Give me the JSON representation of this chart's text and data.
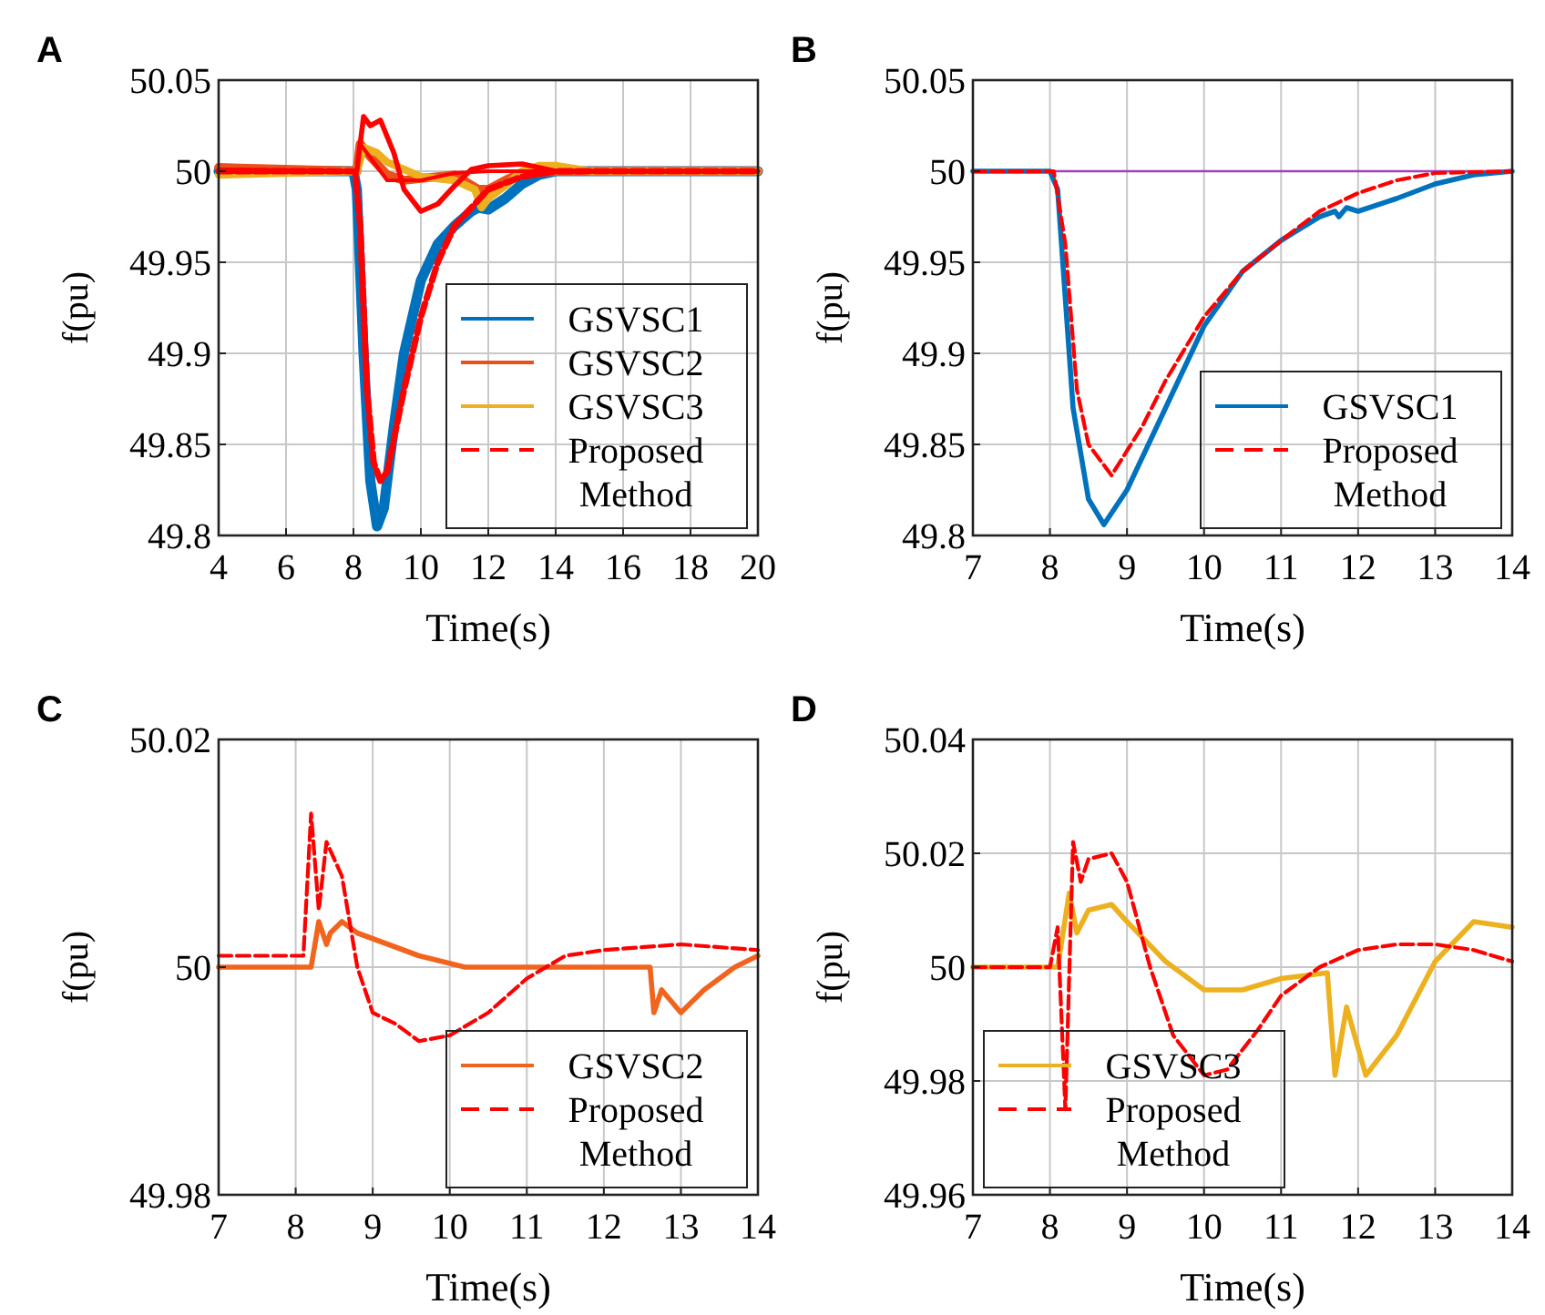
{
  "chart_data": [
    {
      "type": "line",
      "title": "A",
      "xlabel": "Time(s)",
      "ylabel": "f(pu)",
      "xlim": [
        4,
        20
      ],
      "xticks": [
        4,
        6,
        8,
        10,
        12,
        14,
        16,
        18,
        20
      ],
      "ylim": [
        49.8,
        50.05
      ],
      "yticks": [
        49.8,
        49.85,
        49.9,
        49.95,
        50,
        50.05
      ],
      "grid": true,
      "legend": "bottom right",
      "series": [
        {
          "name": "GSVSC1",
          "color": "#0072bd",
          "x": [
            4,
            8,
            8.1,
            8.3,
            8.5,
            8.7,
            8.9,
            9.2,
            9.5,
            10,
            10.5,
            11,
            11.5,
            11.7,
            12,
            12.5,
            13,
            13.5,
            14,
            20
          ],
          "values": [
            50,
            50,
            49.99,
            49.9,
            49.83,
            49.805,
            49.815,
            49.86,
            49.9,
            49.94,
            49.96,
            49.97,
            49.978,
            49.98,
            49.979,
            49.985,
            49.993,
            49.998,
            50,
            50
          ]
        },
        {
          "name": "GSVSC2",
          "color": "#e8501c",
          "x": [
            4,
            8.1,
            8.2,
            8.5,
            9,
            9.5,
            10,
            11,
            11.7,
            12,
            12.5,
            13,
            14,
            20
          ],
          "values": [
            50.002,
            50,
            50.015,
            50.008,
            49.998,
            49.995,
            49.996,
            49.998,
            49.99,
            49.99,
            49.995,
            49.999,
            50,
            50
          ]
        },
        {
          "name": "GSVSC3",
          "color": "#edb120",
          "x": [
            4,
            8.1,
            8.3,
            8.7,
            9,
            10,
            11,
            11.6,
            11.8,
            12,
            12.5,
            13,
            13.5,
            14,
            15,
            20
          ],
          "values": [
            49.998,
            50,
            50.013,
            50.01,
            50.005,
            49.997,
            49.995,
            49.99,
            49.98,
            49.985,
            49.992,
            50,
            50.003,
            50.003,
            50,
            50
          ]
        },
        {
          "name": "Proposed Method",
          "color": "#ff0000",
          "line_style": "dashed",
          "x": [
            4,
            8.05,
            8.2,
            8.4,
            8.6,
            8.8,
            9,
            9.5,
            10,
            10.5,
            11,
            11.5,
            12,
            13,
            14,
            20
          ],
          "values": [
            50,
            50,
            49.97,
            49.88,
            49.84,
            49.83,
            49.835,
            49.88,
            49.92,
            49.95,
            49.97,
            49.98,
            49.99,
            49.997,
            50,
            50
          ]
        },
        {
          "color": "#ff0000",
          "x": [
            4,
            8.1,
            8.3,
            8.5,
            8.8,
            9.2,
            9.5,
            10,
            10.5,
            11,
            11.5,
            12,
            13,
            14,
            20
          ],
          "values": [
            50,
            50,
            50.03,
            50.025,
            50.028,
            50.01,
            49.99,
            49.978,
            49.982,
            49.992,
            50.001,
            50.003,
            50.004,
            50,
            50
          ]
        },
        {
          "color": "#ff0000",
          "x": [
            4,
            8.1,
            8.2,
            8.6,
            9,
            10,
            11,
            12,
            13,
            20
          ],
          "values": [
            50.001,
            50,
            50.015,
            50.005,
            49.995,
            49.995,
            49.999,
            50,
            50,
            50
          ]
        }
      ]
    },
    {
      "type": "line",
      "title": "B",
      "xlabel": "Time(s)",
      "ylabel": "f(pu)",
      "xlim": [
        7,
        14
      ],
      "xticks": [
        7,
        8,
        9,
        10,
        11,
        12,
        13,
        14
      ],
      "ylim": [
        49.8,
        50.05
      ],
      "yticks": [
        49.8,
        49.85,
        49.9,
        49.95,
        50,
        50.05
      ],
      "grid": true,
      "legend": "bottom right",
      "ref_lines": [
        {
          "axis": "y",
          "value": 50,
          "color": "#a040c0"
        }
      ],
      "series": [
        {
          "name": "GSVSC1",
          "color": "#0072bd",
          "x": [
            7,
            8,
            8.1,
            8.2,
            8.3,
            8.5,
            8.7,
            9,
            9.5,
            10,
            10.5,
            11,
            11.5,
            11.7,
            11.75,
            11.85,
            12,
            12.5,
            13,
            13.5,
            14
          ],
          "values": [
            50,
            50,
            49.99,
            49.93,
            49.87,
            49.82,
            49.806,
            49.825,
            49.87,
            49.915,
            49.945,
            49.962,
            49.975,
            49.978,
            49.975,
            49.98,
            49.978,
            49.985,
            49.993,
            49.998,
            50
          ]
        },
        {
          "name": "Proposed Method",
          "color": "#ff0000",
          "line_style": "dashed",
          "x": [
            7,
            8.05,
            8.2,
            8.35,
            8.5,
            8.8,
            9.2,
            9.5,
            10,
            10.5,
            11,
            11.5,
            12,
            12.5,
            13,
            14
          ],
          "values": [
            50,
            50,
            49.96,
            49.88,
            49.85,
            49.833,
            49.86,
            49.885,
            49.92,
            49.945,
            49.962,
            49.978,
            49.988,
            49.995,
            49.999,
            50
          ]
        }
      ]
    },
    {
      "type": "line",
      "title": "C",
      "xlabel": "Time(s)",
      "ylabel": "f(pu)",
      "xlim": [
        7,
        14
      ],
      "xticks": [
        7,
        8,
        9,
        10,
        11,
        12,
        13,
        14
      ],
      "ylim": [
        49.98,
        50.02
      ],
      "yticks": [
        49.98,
        50,
        50.02
      ],
      "grid": true,
      "legend": "bottom right",
      "series": [
        {
          "name": "GSVSC2",
          "color": "#f0641e",
          "x": [
            7,
            8.2,
            8.3,
            8.4,
            8.45,
            8.6,
            8.8,
            9.2,
            9.6,
            10.2,
            11,
            12,
            12.6,
            12.65,
            12.75,
            13,
            13.3,
            13.7,
            14
          ],
          "values": [
            50,
            50,
            50.004,
            50.002,
            50.003,
            50.004,
            50.003,
            50.002,
            50.001,
            50,
            50,
            50,
            50,
            49.996,
            49.998,
            49.996,
            49.998,
            50,
            50.001
          ]
        },
        {
          "name": "Proposed Method",
          "color": "#ff0000",
          "line_style": "dashed",
          "x": [
            7,
            8.1,
            8.2,
            8.3,
            8.4,
            8.6,
            8.8,
            9,
            9.3,
            9.6,
            10,
            10.5,
            11,
            11.5,
            12,
            13,
            14
          ],
          "values": [
            50.001,
            50.001,
            50.0135,
            50.005,
            50.011,
            50.008,
            50,
            49.996,
            49.995,
            49.9935,
            49.994,
            49.996,
            49.999,
            50.001,
            50.0015,
            50.002,
            50.0015
          ]
        }
      ]
    },
    {
      "type": "line",
      "title": "D",
      "xlabel": "Time(s)",
      "ylabel": "f(pu)",
      "xlim": [
        7,
        14
      ],
      "xticks": [
        7,
        8,
        9,
        10,
        11,
        12,
        13,
        14
      ],
      "ylim": [
        49.96,
        50.04
      ],
      "yticks": [
        49.96,
        49.98,
        50,
        50.02,
        50.04
      ],
      "grid": true,
      "legend": "bottom left",
      "series": [
        {
          "name": "GSVSC3",
          "color": "#edb120",
          "x": [
            7,
            8.1,
            8.25,
            8.35,
            8.5,
            8.8,
            9,
            9.5,
            10,
            10.5,
            11,
            11.6,
            11.7,
            11.85,
            12.1,
            12.5,
            13,
            13.5,
            14
          ],
          "values": [
            50,
            50,
            50.013,
            50.006,
            50.01,
            50.011,
            50.008,
            50.001,
            49.996,
            49.996,
            49.998,
            49.999,
            49.981,
            49.993,
            49.981,
            49.988,
            50.001,
            50.008,
            50.007
          ]
        },
        {
          "name": "Proposed Method",
          "color": "#ff0000",
          "line_style": "dashed",
          "x": [
            7,
            8,
            8.1,
            8.2,
            8.3,
            8.4,
            8.5,
            8.8,
            9,
            9.3,
            9.6,
            10,
            10.3,
            10.7,
            11,
            11.5,
            12,
            12.5,
            13,
            13.5,
            14
          ],
          "values": [
            50,
            50,
            50.007,
            49.975,
            50.022,
            50.015,
            50.019,
            50.02,
            50.015,
            50,
            49.988,
            49.981,
            49.982,
            49.989,
            49.995,
            50,
            50.003,
            50.004,
            50.004,
            50.003,
            50.001
          ]
        }
      ]
    }
  ]
}
